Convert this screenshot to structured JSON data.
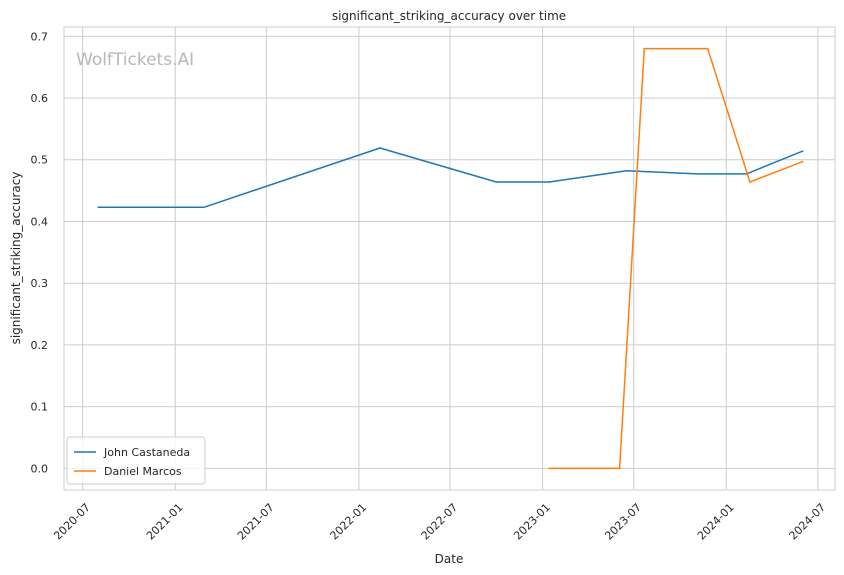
{
  "chart_data": {
    "type": "line",
    "title": "significant_striking_accuracy over time",
    "xlabel": "Date",
    "ylabel": "significant_striking_accuracy",
    "watermark": "WolfTickets.AI",
    "x_ticks": [
      "2020-07",
      "2021-01",
      "2021-07",
      "2022-01",
      "2022-07",
      "2023-01",
      "2023-07",
      "2024-01",
      "2024-07"
    ],
    "y_ticks": [
      "0.0",
      "0.1",
      "0.2",
      "0.3",
      "0.4",
      "0.5",
      "0.6",
      "0.7"
    ],
    "xlim": [
      "2020-05-25",
      "2024-08-04"
    ],
    "ylim": [
      -0.035,
      0.715
    ],
    "grid": true,
    "legend_position": "lower-left",
    "series": [
      {
        "name": "John Castaneda",
        "color": "#1f77b4",
        "points": [
          {
            "x": "2020-08-01",
            "y": 0.423
          },
          {
            "x": "2021-02-27",
            "y": 0.423
          },
          {
            "x": "2022-02-12",
            "y": 0.519
          },
          {
            "x": "2022-10-01",
            "y": 0.464
          },
          {
            "x": "2023-01-14",
            "y": 0.464
          },
          {
            "x": "2023-06-17",
            "y": 0.482
          },
          {
            "x": "2023-11-04",
            "y": 0.477
          },
          {
            "x": "2024-02-10",
            "y": 0.477
          },
          {
            "x": "2024-06-01",
            "y": 0.514
          }
        ]
      },
      {
        "name": "Daniel Marcos",
        "color": "#ff7f0e",
        "points": [
          {
            "x": "2023-01-14",
            "y": 0.0
          },
          {
            "x": "2023-06-03",
            "y": 0.0
          },
          {
            "x": "2023-07-22",
            "y": 0.68
          },
          {
            "x": "2023-11-25",
            "y": 0.68
          },
          {
            "x": "2024-02-17",
            "y": 0.464
          },
          {
            "x": "2024-06-01",
            "y": 0.497
          }
        ]
      }
    ]
  }
}
